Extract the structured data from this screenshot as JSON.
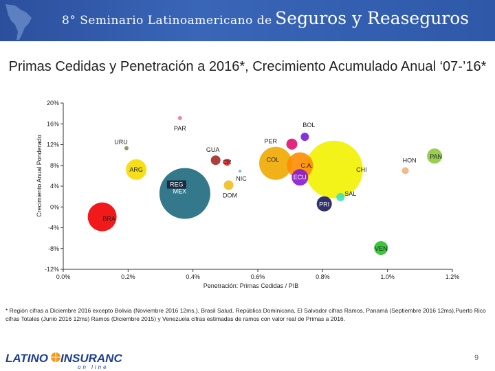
{
  "banner": {
    "title_prefix": "8° Seminario Latinoamericano de",
    "title_main": "Seguros y Reaseguros"
  },
  "title": "Primas Cedidas y Penetración a 2016*, Crecimiento Acumulado Anual ‘07-’16*",
  "chart_data": {
    "type": "scatter",
    "bubble": true,
    "title": "Primas Cedidas y Penetración a 2016*, Crecimiento Acumulado Anual ‘07-’16*",
    "xlabel": "Penetración: Primas Cedidas / PIB",
    "ylabel": "Crecimiento Anual Ponderado",
    "xlim": [
      0.0,
      1.2
    ],
    "ylim": [
      -12,
      20
    ],
    "x_ticks": [
      0.0,
      0.2,
      0.4,
      0.6,
      0.8,
      1.0,
      1.2
    ],
    "x_tick_labels": [
      "0.0%",
      "0.2%",
      "0.4%",
      "0.6%",
      "0.8%",
      "1.0%",
      "1.2%"
    ],
    "y_ticks": [
      20,
      16,
      12,
      8,
      4,
      0,
      -4,
      -8,
      -12
    ],
    "y_tick_labels": [
      "20%",
      "16%",
      "12%",
      "8%",
      "4%",
      "0%",
      "-4%",
      "-8%",
      "-12%"
    ],
    "grid": false,
    "points": [
      {
        "name": "PAR",
        "x": 0.36,
        "y": 17.1,
        "r": 3,
        "color": "#e87a9a"
      },
      {
        "name": "BOL",
        "x": 0.745,
        "y": 13.5,
        "r": 6,
        "color": "#7a1fd6"
      },
      {
        "name": "PER",
        "x": 0.705,
        "y": 12.1,
        "r": 8,
        "color": "#e01070"
      },
      {
        "name": "URU",
        "x": 0.195,
        "y": 11.3,
        "r": 3,
        "color": "#8a8a50"
      },
      {
        "name": "GUA",
        "x": 0.47,
        "y": 9.0,
        "r": 7,
        "color": "#a52a2a"
      },
      {
        "name": "CR",
        "x": 0.505,
        "y": 8.6,
        "r": 5,
        "color": "#e02020"
      },
      {
        "name": "COL",
        "x": 0.655,
        "y": 8.4,
        "r": 24,
        "color": "#f0a800"
      },
      {
        "name": "C.A.",
        "x": 0.73,
        "y": 8.0,
        "r": 19,
        "color": "#ff8c00"
      },
      {
        "name": "CHI",
        "x": 0.835,
        "y": 7.2,
        "r": 42,
        "color": "#f2f200"
      },
      {
        "name": "HON",
        "x": 1.055,
        "y": 7.0,
        "r": 5,
        "color": "#f4b07a"
      },
      {
        "name": "PAN",
        "x": 1.145,
        "y": 9.8,
        "r": 11,
        "color": "#8fc93f"
      },
      {
        "name": "ARG",
        "x": 0.225,
        "y": 7.2,
        "r": 15,
        "color": "#f5dc00"
      },
      {
        "name": "NIC",
        "x": 0.545,
        "y": 6.9,
        "r": 2,
        "color": "#58b8d8"
      },
      {
        "name": "ECU",
        "x": 0.73,
        "y": 5.7,
        "r": 12,
        "color": "#8a18d0"
      },
      {
        "name": "REG",
        "x": 0.375,
        "y": 2.6,
        "r": 37,
        "color": "#1e6a7e"
      },
      {
        "name": "MEX",
        "x": 0.355,
        "y": 4.7,
        "r": 3,
        "color": "#1a2a6a"
      },
      {
        "name": "DOM",
        "x": 0.51,
        "y": 4.2,
        "r": 7,
        "color": "#f0c020"
      },
      {
        "name": "PRI",
        "x": 0.805,
        "y": 0.6,
        "r": 11,
        "color": "#1a1b5a"
      },
      {
        "name": "SAL",
        "x": 0.855,
        "y": 1.9,
        "r": 6,
        "color": "#40e0c0"
      },
      {
        "name": "BRA",
        "x": 0.12,
        "y": -1.9,
        "r": 21,
        "color": "#f00000"
      },
      {
        "name": "VEN",
        "x": 0.98,
        "y": -7.9,
        "r": 10,
        "color": "#28c028"
      }
    ]
  },
  "labels": [
    {
      "text": "PAR"
    },
    {
      "text": "BOL"
    },
    {
      "text": "PER"
    },
    {
      "text": "URU"
    },
    {
      "text": "GUA"
    },
    {
      "text": "CR"
    },
    {
      "text": "COL"
    },
    {
      "text": "C.A."
    },
    {
      "text": "CHI"
    },
    {
      "text": "HON"
    },
    {
      "text": "PAN"
    },
    {
      "text": "ARG"
    },
    {
      "text": "NIC"
    },
    {
      "text": "ECU"
    },
    {
      "text": "REG"
    },
    {
      "text": "MEX"
    },
    {
      "text": "DOM"
    },
    {
      "text": "PRI"
    },
    {
      "text": "SAL"
    },
    {
      "text": "BRA"
    },
    {
      "text": "VEN"
    }
  ],
  "footnote": "* Región cifras a Diciembre 2016 excepto Bolivia (Noviembre 2016 12ms.), Brasil Salud, República Dominicana, El Salvador cifras Ramos, Panamá (Septiembre 2016 12ms),Puerto Rico cifras Totales (Junio 2016 12ms) Ramos (Diciembre 2015) y Venezuela cifras estimadas de ramos con valor real de Primas a 2016.",
  "footer": {
    "logo_left": "LATINO",
    "logo_right": "INSURANCE",
    "logo_sub": "on line",
    "page_number": "9"
  },
  "colors": {
    "banner": "#2f58a8",
    "logo_blue": "#1f3f8f",
    "logo_orange": "#f39a1e"
  }
}
